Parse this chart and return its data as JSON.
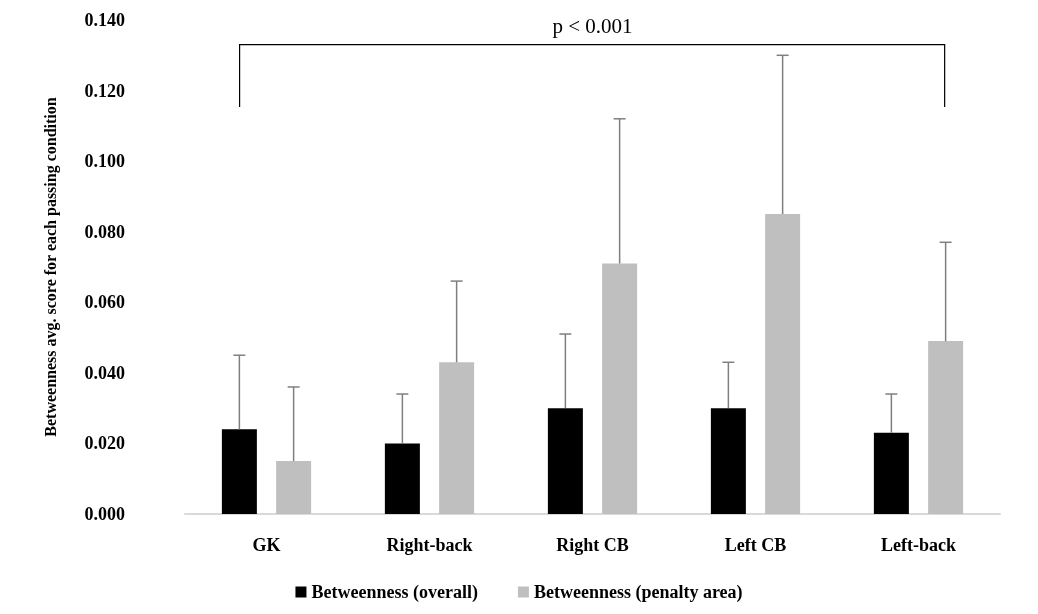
{
  "chart_data": {
    "type": "bar",
    "ylabel": "Betweenness avg. score for each passing condition",
    "categories": [
      "GK",
      "Right-back",
      "Right CB",
      "Left CB",
      "Left-back"
    ],
    "series": [
      {
        "name": "Betweenness (overall)",
        "color": "#000000",
        "values": [
          0.024,
          0.02,
          0.03,
          0.03,
          0.023
        ],
        "errors": [
          [
            0.024,
            0.045
          ],
          [
            0.02,
            0.034
          ],
          [
            0.03,
            0.051
          ],
          [
            0.03,
            0.043
          ],
          [
            0.023,
            0.034
          ]
        ]
      },
      {
        "name": "Betweenness (penalty area)",
        "color": "#bfbfbf",
        "values": [
          0.015,
          0.043,
          0.071,
          0.085,
          0.049
        ],
        "errors": [
          [
            0.015,
            0.036
          ],
          [
            0.043,
            0.066
          ],
          [
            0.071,
            0.112
          ],
          [
            0.085,
            0.13
          ],
          [
            0.049,
            0.077
          ]
        ]
      }
    ],
    "ylim": [
      0,
      0.14
    ],
    "yticks": [
      {
        "value": 0,
        "label": "0.000"
      },
      {
        "value": 0.02,
        "label": "0.020"
      },
      {
        "value": 0.04,
        "label": "0.040"
      },
      {
        "value": 0.06,
        "label": "0.060"
      },
      {
        "value": 0.08,
        "label": "0.080"
      },
      {
        "value": 0.1,
        "label": "0.100"
      },
      {
        "value": 0.12,
        "label": "0.120"
      },
      {
        "value": 0.14,
        "label": "0.140"
      }
    ],
    "annotations": [
      "p < 0.001"
    ],
    "legend": "bottom",
    "grid": false
  }
}
